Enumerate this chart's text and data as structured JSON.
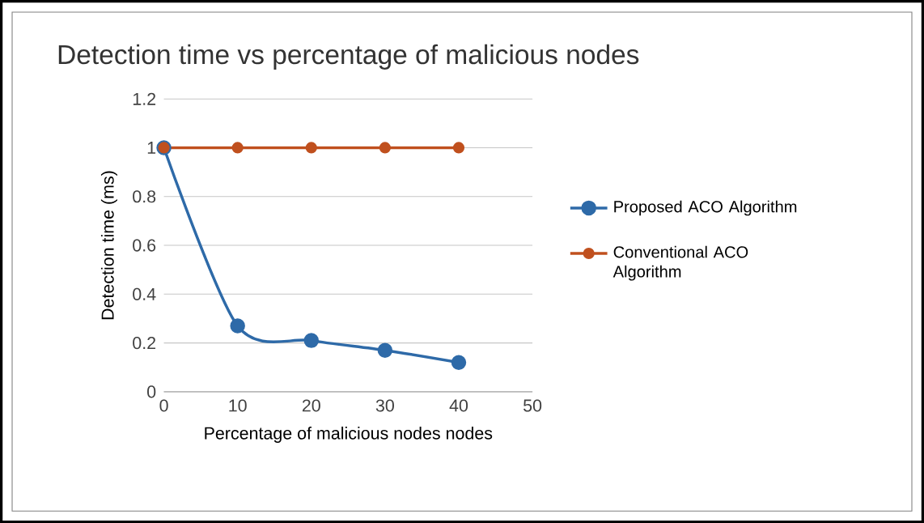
{
  "chart_data": {
    "type": "line",
    "title": "Detection time vs percentage of malicious nodes",
    "xlabel": "Percentage of malicious nodes nodes",
    "ylabel": "Detection time (ms)",
    "x": [
      0,
      10,
      20,
      30,
      40
    ],
    "xlim": [
      0,
      50
    ],
    "xticks": [
      0,
      10,
      20,
      30,
      40,
      50
    ],
    "ylim": [
      0,
      1.2
    ],
    "yticks": [
      0,
      0.2,
      0.4,
      0.6,
      0.8,
      1,
      1.2
    ],
    "grid": "y",
    "legend": "right",
    "marker": "circle",
    "line_style": "solid",
    "series": [
      {
        "name": "Proposed ACO Algorithm",
        "color": "#2e6aa8",
        "values": [
          1,
          0.27,
          0.21,
          0.17,
          0.12
        ]
      },
      {
        "name": "Conventional ACO Algorithm",
        "color": "#c0501e",
        "values": [
          1,
          1,
          1,
          1,
          1
        ]
      }
    ]
  }
}
